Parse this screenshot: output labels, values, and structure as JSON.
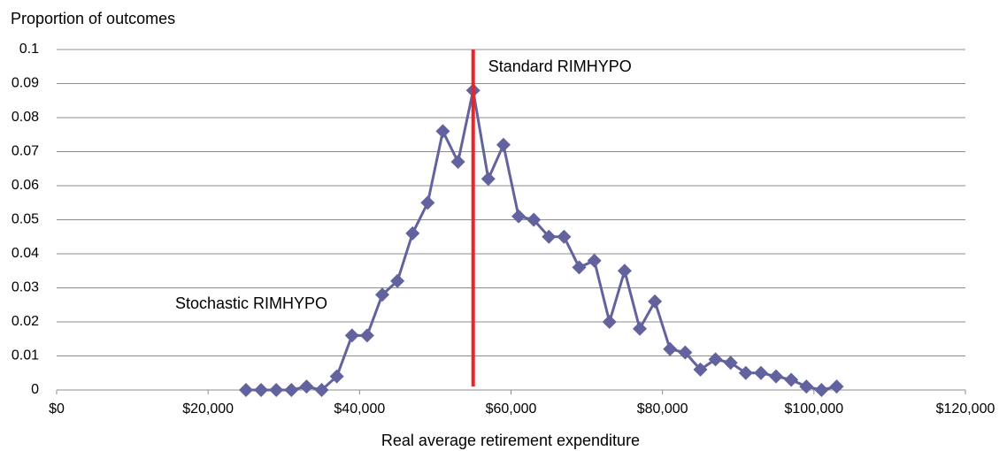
{
  "chart_data": {
    "type": "line",
    "y_axis_label": "Proportion of outcomes",
    "x_axis_label": "Real average retirement expenditure",
    "x": [
      25000,
      27000,
      29000,
      31000,
      33000,
      35000,
      37000,
      39000,
      41000,
      43000,
      45000,
      47000,
      49000,
      51000,
      53000,
      55000,
      57000,
      59000,
      61000,
      63000,
      65000,
      67000,
      69000,
      71000,
      73000,
      75000,
      77000,
      79000,
      81000,
      83000,
      85000,
      87000,
      89000,
      91000,
      93000,
      95000,
      97000,
      99000,
      101000,
      103000
    ],
    "series": [
      {
        "name": "Stochastic RIMHYPO",
        "color": "#62629e",
        "values": [
          0,
          0,
          0,
          0,
          0.001,
          0,
          0.004,
          0.016,
          0.016,
          0.028,
          0.032,
          0.046,
          0.055,
          0.076,
          0.067,
          0.088,
          0.062,
          0.072,
          0.051,
          0.05,
          0.045,
          0.045,
          0.036,
          0.038,
          0.02,
          0.035,
          0.018,
          0.026,
          0.012,
          0.011,
          0.006,
          0.009,
          0.008,
          0.005,
          0.005,
          0.004,
          0.003,
          0.001,
          0,
          0.001
        ]
      }
    ],
    "reference_line": {
      "x": 55000,
      "color": "#e8262a",
      "label": "Standard RIMHYPO",
      "label_color": "#a23a6e"
    },
    "xlim": [
      0,
      120000
    ],
    "xticks": [
      {
        "value": 0,
        "label": "$0"
      },
      {
        "value": 20000,
        "label": "$20,000"
      },
      {
        "value": 40000,
        "label": "$40,000"
      },
      {
        "value": 60000,
        "label": "$60,000"
      },
      {
        "value": 80000,
        "label": "$80,000"
      },
      {
        "value": 100000,
        "label": "$100,000"
      },
      {
        "value": 120000,
        "label": "$120,000"
      }
    ],
    "ylim": [
      0,
      0.1
    ],
    "yticks": [
      0,
      0.01,
      0.02,
      0.03,
      0.04,
      0.05,
      0.06,
      0.07,
      0.08,
      0.09,
      0.1
    ],
    "grid": true
  }
}
